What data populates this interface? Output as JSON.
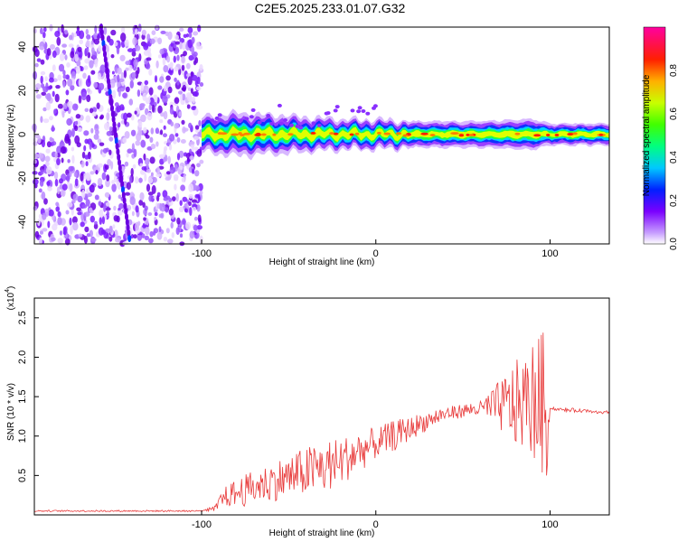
{
  "title": "C2E5.2025.233.01.07.G32",
  "chart_data": [
    {
      "type": "heatmap",
      "name": "spectrogram",
      "xlabel": "Height of straight line (km)",
      "ylabel": "Frequency (Hz)",
      "xlim": [
        -196,
        134
      ],
      "ylim": [
        -50,
        49
      ],
      "x_ticks": [
        -100,
        0,
        100
      ],
      "y_ticks": [
        -40,
        -20,
        0,
        20,
        40
      ],
      "colorbar": {
        "label": "Normalized spectral amplitude",
        "range": [
          0.0,
          1.0
        ],
        "ticks": [
          "0.0",
          "0.2",
          "0.4",
          "0.6",
          "0.8"
        ]
      },
      "noise_region": [
        -196,
        -100
      ],
      "band": {
        "center_freq_hz": 0,
        "points": [
          {
            "x": -100,
            "width": 8,
            "amp": 0.45
          },
          {
            "x": -90,
            "width": 9,
            "amp": 0.7
          },
          {
            "x": -80,
            "width": 10,
            "amp": 0.65
          },
          {
            "x": -60,
            "width": 9,
            "amp": 0.6
          },
          {
            "x": -40,
            "width": 8,
            "amp": 0.6
          },
          {
            "x": -20,
            "width": 7,
            "amp": 0.85
          },
          {
            "x": 0,
            "width": 7,
            "amp": 0.8
          },
          {
            "x": 20,
            "width": 6,
            "amp": 0.9
          },
          {
            "x": 60,
            "width": 6,
            "amp": 0.85
          },
          {
            "x": 90,
            "width": 7,
            "amp": 0.9
          },
          {
            "x": 100,
            "width": 5,
            "amp": 0.6
          },
          {
            "x": 134,
            "width": 5,
            "amp": 0.7
          }
        ]
      }
    },
    {
      "type": "line",
      "name": "snr",
      "xlabel": "Height of straight line (km)",
      "ylabel": "SNR (10 * v/v)",
      "scale_label": "(x10",
      "scale_exp": "4",
      "xlim": [
        -196,
        134
      ],
      "ylim": [
        0,
        2.75
      ],
      "x_ticks": [
        -100,
        0,
        100
      ],
      "y_ticks": [
        "0.5",
        "1.0",
        "1.5",
        "2.0",
        "2.5"
      ],
      "series": [
        {
          "name": "SNR",
          "color": "#e83a3a",
          "x": [
            -196,
            -100,
            -92,
            -88,
            -80,
            -70,
            -60,
            -50,
            -40,
            -30,
            -20,
            -10,
            0,
            10,
            20,
            30,
            40,
            50,
            60,
            70,
            80,
            85,
            90,
            95,
            98,
            100,
            110,
            120,
            134
          ],
          "y": [
            0.05,
            0.05,
            0.08,
            0.22,
            0.28,
            0.35,
            0.42,
            0.48,
            0.55,
            0.6,
            0.68,
            0.8,
            0.9,
            1.0,
            1.1,
            1.2,
            1.28,
            1.32,
            1.35,
            1.38,
            1.4,
            1.42,
            1.45,
            1.42,
            1.35,
            1.35,
            1.33,
            1.32,
            1.3
          ],
          "noise_amp": [
            0,
            0,
            0.04,
            0.12,
            0.18,
            0.22,
            0.25,
            0.28,
            0.32,
            0.35,
            0.3,
            0.28,
            0.2,
            0.2,
            0.15,
            0.12,
            0.1,
            0.08,
            0.1,
            0.3,
            0.55,
            0.6,
            0.75,
            0.9,
            1.0,
            0.02,
            0.02,
            0.02,
            0.02
          ]
        }
      ]
    }
  ]
}
